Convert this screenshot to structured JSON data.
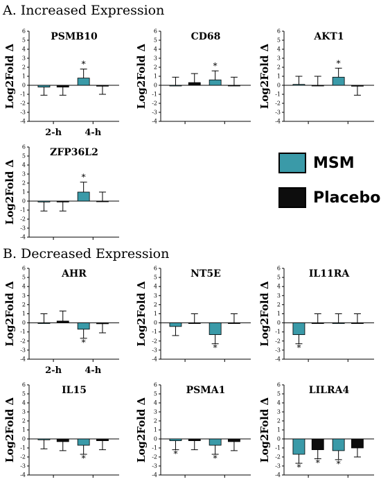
{
  "sections": {
    "a_title": "A. Increased Expression",
    "b_title": "B. Decreased Expression"
  },
  "legend": {
    "items": [
      {
        "label": "MSM",
        "color": "#3a9aa8"
      },
      {
        "label": "Placebo",
        "color": "#0d0d0d"
      }
    ]
  },
  "colors": {
    "msm": "#3a9aa8",
    "placebo": "#0d0d0d",
    "axis": "#000000"
  },
  "chart_data": [
    {
      "type": "bar",
      "title": "PSMB10",
      "ylabel": "Log2Fold Δ",
      "ylim": [
        -4,
        6
      ],
      "categories": [
        "2-h",
        "4-h"
      ],
      "series": [
        {
          "name": "MSM",
          "values": [
            -0.2,
            0.8
          ],
          "errors": [
            0.9,
            1.0
          ],
          "sig": [
            false,
            true
          ]
        },
        {
          "name": "Placebo",
          "values": [
            -0.2,
            -0.1
          ],
          "errors": [
            0.9,
            0.9
          ],
          "sig": [
            false,
            false
          ]
        }
      ]
    },
    {
      "type": "bar",
      "title": "CD68",
      "ylabel": "Log2Fold Δ",
      "ylim": [
        -4,
        6
      ],
      "categories": [
        "2-h",
        "4-h"
      ],
      "series": [
        {
          "name": "MSM",
          "values": [
            0.0,
            0.6
          ],
          "errors": [
            0.9,
            1.0
          ],
          "sig": [
            false,
            true
          ]
        },
        {
          "name": "Placebo",
          "values": [
            0.3,
            0.0
          ],
          "errors": [
            1.0,
            0.9
          ],
          "sig": [
            false,
            false
          ]
        }
      ]
    },
    {
      "type": "bar",
      "title": "AKT1",
      "ylabel": "Log2Fold Δ",
      "ylim": [
        -4,
        6
      ],
      "categories": [
        "2-h",
        "4-h"
      ],
      "series": [
        {
          "name": "MSM",
          "values": [
            0.1,
            0.9
          ],
          "errors": [
            0.9,
            1.0
          ],
          "sig": [
            false,
            true
          ]
        },
        {
          "name": "Placebo",
          "values": [
            0.0,
            -0.1
          ],
          "errors": [
            1.0,
            1.0
          ],
          "sig": [
            false,
            false
          ]
        }
      ]
    },
    {
      "type": "bar",
      "title": "ZFP36L2",
      "ylabel": "Log2Fold Δ",
      "ylim": [
        -4,
        6
      ],
      "categories": [
        "2-h",
        "4-h"
      ],
      "series": [
        {
          "name": "MSM",
          "values": [
            -0.1,
            1.0
          ],
          "errors": [
            1.0,
            1.1
          ],
          "sig": [
            false,
            true
          ]
        },
        {
          "name": "Placebo",
          "values": [
            -0.1,
            0.0
          ],
          "errors": [
            1.0,
            1.0
          ],
          "sig": [
            false,
            false
          ]
        }
      ]
    },
    {
      "type": "bar",
      "title": "AHR",
      "ylabel": "Log2Fold Δ",
      "ylim": [
        -4,
        6
      ],
      "categories": [
        "2-h",
        "4-h"
      ],
      "series": [
        {
          "name": "MSM",
          "values": [
            0.0,
            -0.7
          ],
          "errors": [
            1.0,
            1.0
          ],
          "sig": [
            false,
            true
          ]
        },
        {
          "name": "Placebo",
          "values": [
            0.2,
            -0.1
          ],
          "errors": [
            1.1,
            1.0
          ],
          "sig": [
            false,
            false
          ]
        }
      ]
    },
    {
      "type": "bar",
      "title": "NT5E",
      "ylabel": "Log2Fold Δ",
      "ylim": [
        -4,
        6
      ],
      "categories": [
        "2-h",
        "4-h"
      ],
      "series": [
        {
          "name": "MSM",
          "values": [
            -0.4,
            -1.3
          ],
          "errors": [
            1.0,
            1.0
          ],
          "sig": [
            false,
            true
          ]
        },
        {
          "name": "Placebo",
          "values": [
            0.0,
            0.0
          ],
          "errors": [
            1.0,
            1.0
          ],
          "sig": [
            false,
            false
          ]
        }
      ]
    },
    {
      "type": "bar",
      "title": "IL11RA",
      "ylabel": "Log2Fold Δ",
      "ylim": [
        -4,
        6
      ],
      "categories": [
        "2-h",
        "4-h"
      ],
      "series": [
        {
          "name": "MSM",
          "values": [
            -1.3,
            0.0
          ],
          "errors": [
            1.0,
            1.0
          ],
          "sig": [
            true,
            false
          ]
        },
        {
          "name": "Placebo",
          "values": [
            0.0,
            0.0
          ],
          "errors": [
            1.0,
            1.0
          ],
          "sig": [
            false,
            false
          ]
        }
      ]
    },
    {
      "type": "bar",
      "title": "IL15",
      "ylabel": "Log2Fold Δ",
      "ylim": [
        -4,
        6
      ],
      "categories": [
        "2-h",
        "4-h"
      ],
      "series": [
        {
          "name": "MSM",
          "values": [
            -0.1,
            -0.7
          ],
          "errors": [
            1.0,
            1.0
          ],
          "sig": [
            false,
            true
          ]
        },
        {
          "name": "Placebo",
          "values": [
            -0.3,
            -0.2
          ],
          "errors": [
            1.0,
            1.0
          ],
          "sig": [
            false,
            false
          ]
        }
      ]
    },
    {
      "type": "bar",
      "title": "PSMA1",
      "ylabel": "Log2Fold Δ",
      "ylim": [
        -4,
        6
      ],
      "categories": [
        "2-h",
        "4-h"
      ],
      "series": [
        {
          "name": "MSM",
          "values": [
            -0.2,
            -0.7
          ],
          "errors": [
            1.0,
            1.0
          ],
          "sig": [
            true,
            true
          ]
        },
        {
          "name": "Placebo",
          "values": [
            -0.2,
            -0.3
          ],
          "errors": [
            1.0,
            1.0
          ],
          "sig": [
            false,
            false
          ]
        }
      ]
    },
    {
      "type": "bar",
      "title": "LILRA4",
      "ylabel": "Log2Fold Δ",
      "ylim": [
        -4,
        6
      ],
      "categories": [
        "2-h",
        "4-h"
      ],
      "series": [
        {
          "name": "MSM",
          "values": [
            -1.7,
            -1.3
          ],
          "errors": [
            1.0,
            1.0
          ],
          "sig": [
            true,
            true
          ]
        },
        {
          "name": "Placebo",
          "values": [
            -1.2,
            -1.0
          ],
          "errors": [
            1.0,
            1.0
          ],
          "sig": [
            true,
            false
          ]
        }
      ]
    }
  ]
}
